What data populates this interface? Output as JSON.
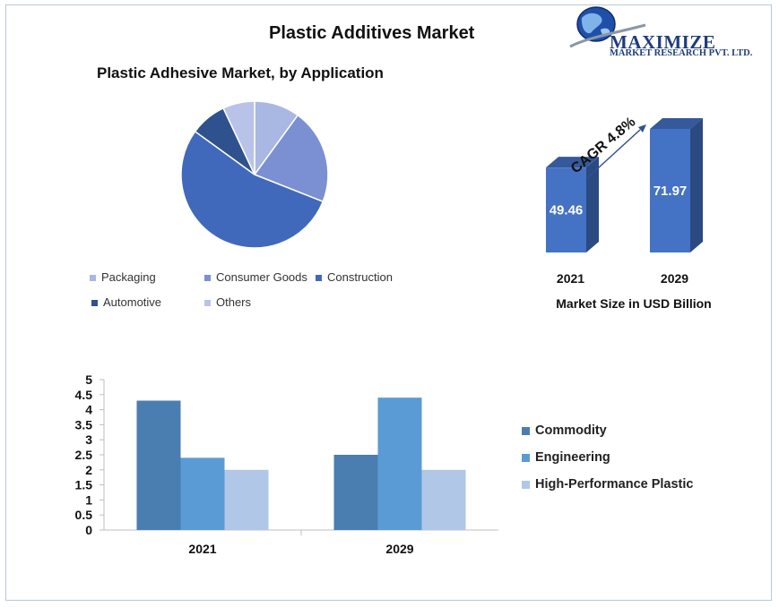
{
  "title": "Plastic Additives Market",
  "logo": {
    "name": "MAXIMIZE",
    "subtitle": "MARKET RESEARCH PVT. LTD.",
    "globe_icon": "globe-icon"
  },
  "chart_data": [
    {
      "type": "pie",
      "title": "Plastic Adhesive Market, by Application",
      "legend_position": "bottom",
      "slices": [
        {
          "label": "Packaging",
          "value": 10,
          "color": "#a9b7e3"
        },
        {
          "label": "Consumer Goods",
          "value": 21,
          "color": "#7a90d3"
        },
        {
          "label": "Construction",
          "value": 54,
          "color": "#4169bb"
        },
        {
          "label": "Automotive",
          "value": 8,
          "color": "#2f528f"
        },
        {
          "label": "Others",
          "value": 7,
          "color": "#b9c3ea"
        }
      ]
    },
    {
      "type": "bar",
      "title": "",
      "xlabel": "Market Size in USD Billion",
      "categories": [
        "2021",
        "2029"
      ],
      "values": [
        49.46,
        71.97
      ],
      "annotation": "CAGR 4.8%",
      "color": "#4472c4"
    },
    {
      "type": "bar",
      "title": "",
      "categories": [
        "2021",
        "2029"
      ],
      "ylim": [
        0,
        5
      ],
      "yticks": [
        "0",
        "0.5",
        "1",
        "1.5",
        "2",
        "2.5",
        "3",
        "3.5",
        "4",
        "4.5",
        "5"
      ],
      "legend_position": "right",
      "series": [
        {
          "name": "Commodity",
          "values": [
            4.3,
            2.5
          ],
          "color": "#4a7eb0"
        },
        {
          "name": "Engineering",
          "values": [
            2.4,
            4.4
          ],
          "color": "#5b9bd5"
        },
        {
          "name": "High-Performance Plastic",
          "values": [
            2.0,
            2.0
          ],
          "color": "#b0c7e8"
        }
      ]
    }
  ]
}
